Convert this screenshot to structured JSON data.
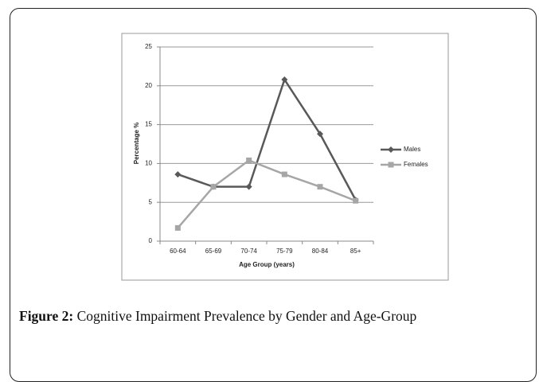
{
  "chart_data": {
    "type": "line",
    "categories": [
      "60-64",
      "65-69",
      "70-74",
      "75-79",
      "80-84",
      "85+"
    ],
    "series": [
      {
        "name": "Males",
        "color": "#595959",
        "marker": "diamond",
        "values": [
          8.6,
          7,
          7,
          20.8,
          13.8,
          5.3
        ]
      },
      {
        "name": "Females",
        "color": "#a6a6a6",
        "marker": "square",
        "values": [
          1.7,
          7,
          10.4,
          8.6,
          7,
          5.2
        ]
      }
    ],
    "ylabel": "Percentage %",
    "xlabel": "Age Group (years)",
    "ylim": [
      0,
      25
    ],
    "yticks": [
      0,
      5,
      10,
      15,
      20,
      25
    ],
    "grid": true,
    "legend": "right"
  },
  "caption": {
    "label": "Figure 2:",
    "text": "Cognitive Impairment Prevalence by Gender and Age-Group"
  }
}
